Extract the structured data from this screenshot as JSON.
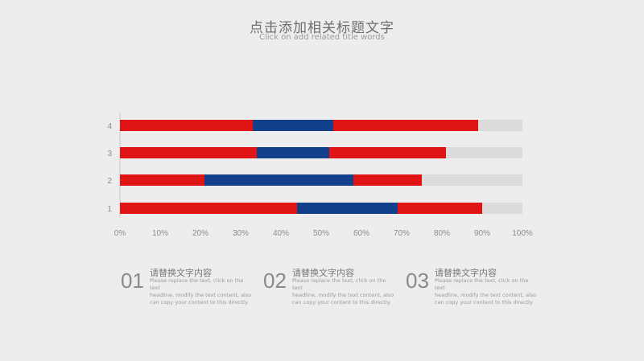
{
  "header": {
    "title": "点击添加相关标题文字",
    "subtitle": "Click on add related title words"
  },
  "colors": {
    "red": "#e01414",
    "blue": "#123f8a",
    "track": "#dcdcdc",
    "axis_text": "#8c8c8c"
  },
  "chart_data": {
    "type": "bar",
    "orientation": "horizontal",
    "stacked": true,
    "categories": [
      "1",
      "2",
      "3",
      "4"
    ],
    "series": [
      {
        "color": "red",
        "values": [
          44,
          21,
          34,
          33
        ]
      },
      {
        "color": "blue",
        "values": [
          25,
          37,
          18,
          20
        ]
      },
      {
        "color": "red",
        "values": [
          21,
          17,
          29,
          36
        ]
      },
      {
        "color": "track",
        "values": [
          10,
          25,
          19,
          11
        ]
      }
    ],
    "xlim": [
      0,
      100
    ],
    "x_ticks": [
      "0%",
      "10%",
      "20%",
      "30%",
      "40%",
      "50%",
      "60%",
      "70%",
      "80%",
      "90%",
      "100%"
    ],
    "grid": false,
    "legend": "none"
  },
  "info_blocks": [
    {
      "number": "01",
      "heading": "请替换文字内容",
      "lines": [
        "Please replace the text, click on the text",
        "headline, modify the text content, also",
        "can copy your content to this directly."
      ]
    },
    {
      "number": "02",
      "heading": "请替换文字内容",
      "lines": [
        "Please replace the text, click on the text",
        "headline, modify the text content, also",
        "can copy your content to this directly."
      ]
    },
    {
      "number": "03",
      "heading": "请替换文字内容",
      "lines": [
        "Please replace the text, click on the text",
        "headline, modify the text content, also",
        "can copy your content to this directly."
      ]
    }
  ]
}
